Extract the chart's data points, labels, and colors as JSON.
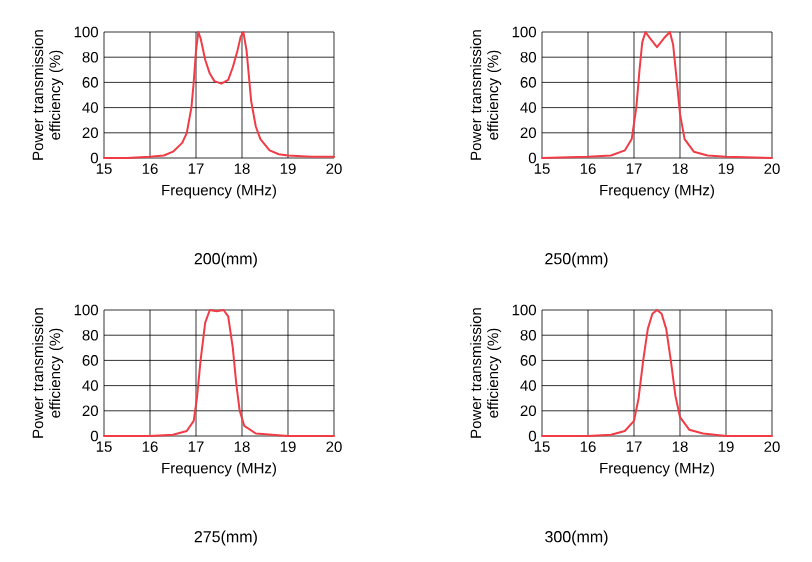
{
  "chart_data": [
    {
      "type": "line",
      "xlabel": "Frequency (MHz)",
      "ylabel": "Power transmission efficiency (%)",
      "annotations": [
        "200(mm)"
      ],
      "xlim": [
        15,
        20
      ],
      "ylim": [
        0,
        100
      ],
      "xticks": [
        15,
        16,
        17,
        18,
        19,
        20
      ],
      "yticks": [
        0,
        20,
        40,
        60,
        80,
        100
      ],
      "grid": true,
      "marker": "none",
      "series": [
        {
          "color": "#f03c46",
          "x": [
            15,
            15.5,
            16,
            16.3,
            16.5,
            16.7,
            16.8,
            16.9,
            16.95,
            17.0,
            17.05,
            17.1,
            17.2,
            17.3,
            17.4,
            17.55,
            17.7,
            17.8,
            17.9,
            17.97,
            18.03,
            18.1,
            18.15,
            18.2,
            18.3,
            18.4,
            18.6,
            18.8,
            19,
            19.5,
            20
          ],
          "values": [
            0,
            0,
            1,
            2,
            5,
            12,
            20,
            40,
            60,
            85,
            100,
            95,
            78,
            67,
            61,
            59,
            62,
            72,
            85,
            96,
            100,
            85,
            65,
            45,
            25,
            15,
            6,
            3,
            2,
            1,
            1
          ]
        }
      ]
    },
    {
      "type": "line",
      "xlabel": "Frequency (MHz)",
      "ylabel": "Power transmission efficiency (%)",
      "annotations": [
        "250(mm)"
      ],
      "xlim": [
        15,
        20
      ],
      "ylim": [
        0,
        100
      ],
      "xticks": [
        15,
        16,
        17,
        18,
        19,
        20
      ],
      "yticks": [
        0,
        20,
        40,
        60,
        80,
        100
      ],
      "grid": true,
      "marker": "none",
      "series": [
        {
          "color": "#f03c46",
          "x": [
            15,
            16,
            16.5,
            16.8,
            16.95,
            17.05,
            17.12,
            17.18,
            17.25,
            17.35,
            17.5,
            17.65,
            17.78,
            17.85,
            17.92,
            18.0,
            18.1,
            18.3,
            18.6,
            19,
            20
          ],
          "values": [
            0,
            1,
            2,
            6,
            15,
            40,
            70,
            92,
            100,
            95,
            88,
            95,
            100,
            90,
            65,
            35,
            15,
            5,
            2,
            1,
            0
          ]
        }
      ]
    },
    {
      "type": "line",
      "xlabel": "Frequency (MHz)",
      "ylabel": "Power transmission efficiency (%)",
      "annotations": [
        "275(mm)"
      ],
      "xlim": [
        15,
        20
      ],
      "ylim": [
        0,
        100
      ],
      "xticks": [
        15,
        16,
        17,
        18,
        19,
        20
      ],
      "yticks": [
        0,
        20,
        40,
        60,
        80,
        100
      ],
      "grid": true,
      "marker": "none",
      "series": [
        {
          "color": "#f03c46",
          "x": [
            15,
            16,
            16.5,
            16.8,
            16.95,
            17.02,
            17.1,
            17.2,
            17.3,
            17.45,
            17.6,
            17.7,
            17.8,
            17.88,
            17.95,
            18.05,
            18.3,
            19,
            20
          ],
          "values": [
            0,
            0,
            1,
            4,
            12,
            30,
            60,
            90,
            100,
            99,
            100,
            95,
            70,
            40,
            20,
            8,
            2,
            0,
            0
          ]
        }
      ]
    },
    {
      "type": "line",
      "xlabel": "Frequency (MHz)",
      "ylabel": "Power transmission efficiency (%)",
      "annotations": [
        "300(mm)"
      ],
      "xlim": [
        15,
        20
      ],
      "ylim": [
        0,
        100
      ],
      "xticks": [
        15,
        16,
        17,
        18,
        19,
        20
      ],
      "yticks": [
        0,
        20,
        40,
        60,
        80,
        100
      ],
      "grid": true,
      "marker": "none",
      "series": [
        {
          "color": "#f03c46",
          "x": [
            15,
            16,
            16.5,
            16.8,
            17.0,
            17.1,
            17.2,
            17.3,
            17.4,
            17.5,
            17.6,
            17.7,
            17.8,
            17.9,
            18.0,
            18.2,
            18.5,
            19,
            20
          ],
          "values": [
            0,
            0,
            1,
            4,
            12,
            30,
            60,
            85,
            97,
            100,
            97,
            85,
            60,
            32,
            15,
            5,
            2,
            0,
            0
          ]
        }
      ]
    }
  ]
}
